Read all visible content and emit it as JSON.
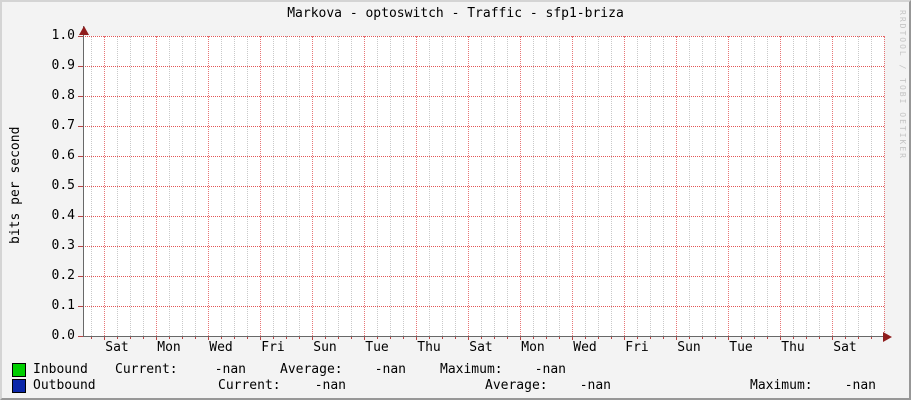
{
  "title": "Markova - optoswitch - Traffic - sfp1-briza",
  "watermark": "RRDTOOL / TOBI OETIKER",
  "chart_data": {
    "type": "line",
    "title": "Markova - optoswitch - Traffic - sfp1-briza",
    "xlabel": "",
    "ylabel": "bits per second",
    "ylim": [
      0.0,
      1.0
    ],
    "y_tick_labels": [
      "1.0",
      "0.9",
      "0.8",
      "0.7",
      "0.6",
      "0.5",
      "0.4",
      "0.3",
      "0.2",
      "0.1",
      "0.0"
    ],
    "x_tick_labels": [
      "Sat",
      "Mon",
      "Wed",
      "Fri",
      "Sun",
      "Tue",
      "Thu",
      "Sat",
      "Mon",
      "Wed",
      "Fri",
      "Sun",
      "Tue",
      "Thu",
      "Sat"
    ],
    "grid": "on",
    "legend_position": "bottom",
    "series": [
      {
        "name": "Inbound",
        "color": "#00cf00",
        "values": []
      },
      {
        "name": "Outbound",
        "color": "#0a26a8",
        "values": []
      }
    ]
  },
  "legend": {
    "rows": [
      {
        "label": "Inbound",
        "color": "#00cf00",
        "fields": [
          {
            "k": "Current:",
            "v": "-nan"
          },
          {
            "k": "Average:",
            "v": "-nan"
          },
          {
            "k": "Maximum:",
            "v": "-nan"
          }
        ]
      },
      {
        "label": "Outbound",
        "color": "#0a26a8",
        "fields": [
          {
            "k": "Current:",
            "v": "-nan"
          },
          {
            "k": "Average:",
            "v": "-nan"
          },
          {
            "k": "Maximum:",
            "v": "-nan"
          }
        ]
      }
    ]
  }
}
